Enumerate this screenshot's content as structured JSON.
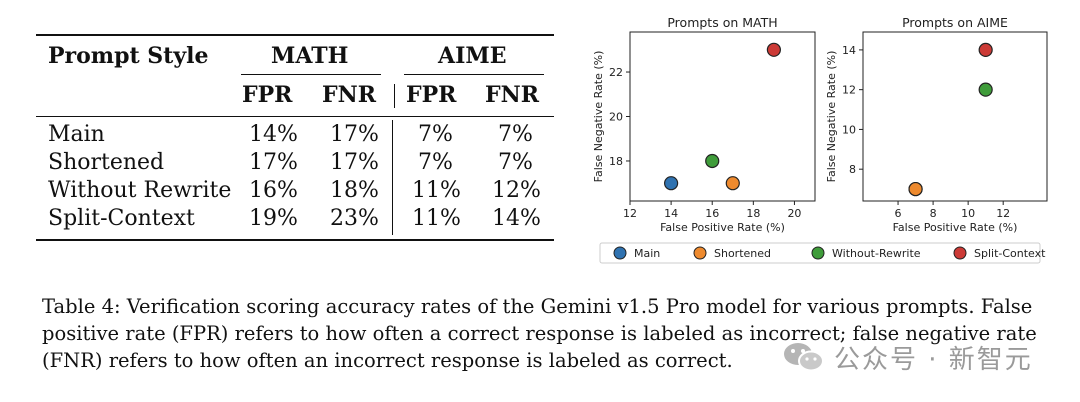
{
  "table": {
    "col_header": "Prompt Style",
    "groups": [
      "MATH",
      "AIME"
    ],
    "subheaders": [
      "FPR",
      "FNR",
      "FPR",
      "FNR"
    ],
    "rows": [
      {
        "style": "Main",
        "values": [
          "14%",
          "17%",
          "7%",
          "7%"
        ]
      },
      {
        "style": "Shortened",
        "values": [
          "17%",
          "17%",
          "7%",
          "7%"
        ]
      },
      {
        "style": "Without Rewrite",
        "values": [
          "16%",
          "18%",
          "11%",
          "12%"
        ]
      },
      {
        "style": "Split-Context",
        "values": [
          "19%",
          "23%",
          "11%",
          "14%"
        ]
      }
    ]
  },
  "chart_data": [
    {
      "type": "scatter",
      "title": "Prompts on MATH",
      "xlabel": "False Positive Rate (%)",
      "ylabel": "False Negative Rate (%)",
      "xlim": [
        12,
        21
      ],
      "ylim": [
        16.2,
        23.8
      ],
      "xticks": [
        12,
        14,
        16,
        18,
        20
      ],
      "yticks": [
        18,
        20,
        22
      ],
      "points": [
        {
          "series": "Main",
          "x": 14,
          "y": 17
        },
        {
          "series": "Shortened",
          "x": 17,
          "y": 17
        },
        {
          "series": "Without-Rewrite",
          "x": 16,
          "y": 18
        },
        {
          "series": "Split-Context",
          "x": 19,
          "y": 23
        }
      ]
    },
    {
      "type": "scatter",
      "title": "Prompts on AIME",
      "xlabel": "False Positive Rate (%)",
      "ylabel": "False Negative Rate (%)",
      "xlim": [
        4,
        14.5
      ],
      "ylim": [
        6.4,
        14.9
      ],
      "xticks": [
        6,
        8,
        10,
        12
      ],
      "yticks": [
        8,
        10,
        12,
        14
      ],
      "points": [
        {
          "series": "Main",
          "x": 7,
          "y": 7
        },
        {
          "series": "Shortened",
          "x": 7,
          "y": 7
        },
        {
          "series": "Without-Rewrite",
          "x": 11,
          "y": 12
        },
        {
          "series": "Split-Context",
          "x": 11,
          "y": 14
        }
      ]
    }
  ],
  "legend": {
    "placement": "bottom",
    "items": [
      {
        "name": "Main",
        "color": "#2f72b0"
      },
      {
        "name": "Shortened",
        "color": "#ee8a2e"
      },
      {
        "name": "Without-Rewrite",
        "color": "#3f9c3a"
      },
      {
        "name": "Split-Context",
        "color": "#cc3a36"
      }
    ]
  },
  "caption": "Table 4: Verification scoring accuracy rates of the Gemini v1.5 Pro model for various prompts. False positive rate (FPR) refers to how often a correct response is labeled as incorrect; false negative rate (FNR) refers to how often an incorrect response is labeled as correct.",
  "watermark": {
    "text": "公众号 · 新智元",
    "icon": "wechat-icon"
  }
}
